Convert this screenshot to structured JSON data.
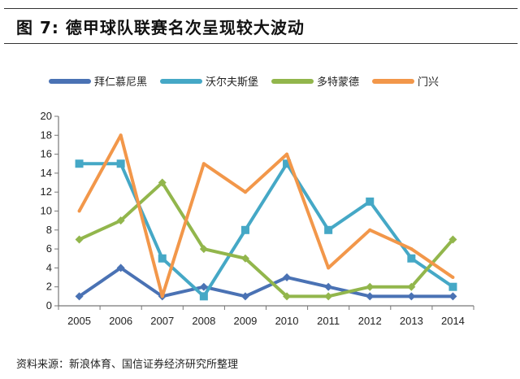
{
  "header": {
    "title": "图 7:  德甲球队联赛名次呈现较大波动"
  },
  "footer": {
    "source": "资料来源：新浪体育、国信证券经济研究所整理"
  },
  "chart_data": {
    "type": "line",
    "title": "",
    "categories": [
      "2005",
      "2006",
      "2007",
      "2008",
      "2009",
      "2010",
      "2011",
      "2012",
      "2013",
      "2014"
    ],
    "ylim": [
      0,
      20
    ],
    "yticks": [
      0,
      2,
      4,
      6,
      8,
      10,
      12,
      14,
      16,
      18,
      20
    ],
    "grid": false,
    "legend_placement": "top",
    "series": [
      {
        "name": "拜仁慕尼黑",
        "color": "#4a72b4",
        "marker": "diamond",
        "values": [
          1,
          4,
          1,
          2,
          1,
          3,
          2,
          1,
          1,
          1
        ]
      },
      {
        "name": "沃尔夫斯堡",
        "color": "#45a8c6",
        "marker": "square",
        "values": [
          15,
          15,
          5,
          1,
          8,
          15,
          8,
          11,
          5,
          2
        ]
      },
      {
        "name": "多特蒙德",
        "color": "#92b64c",
        "marker": "diamond",
        "values": [
          7,
          9,
          13,
          6,
          5,
          1,
          1,
          2,
          2,
          7
        ]
      },
      {
        "name": "门兴",
        "color": "#f2974a",
        "marker": "none",
        "values": [
          10,
          18,
          1,
          15,
          12,
          16,
          4,
          8,
          6,
          3
        ]
      }
    ]
  }
}
